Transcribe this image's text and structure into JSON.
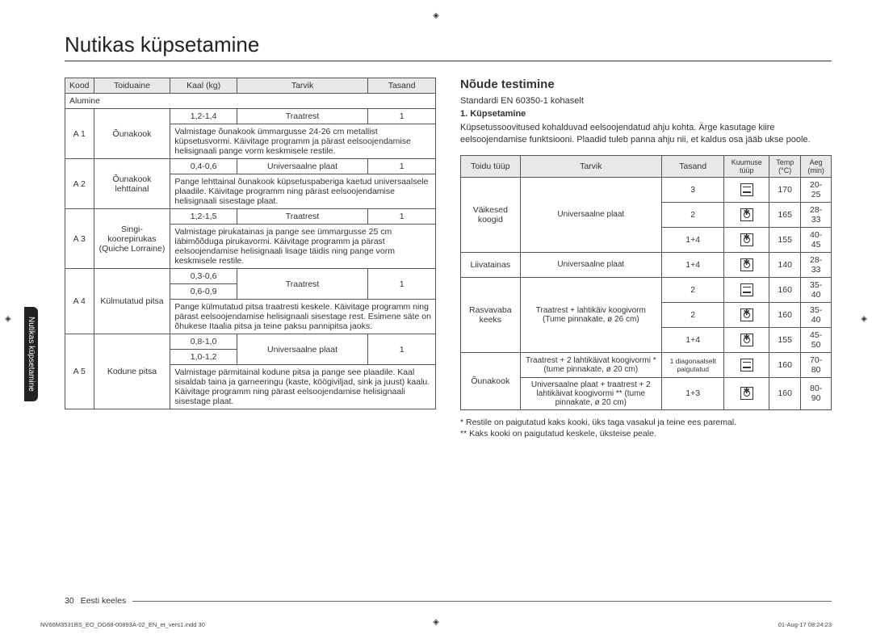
{
  "crop_marks": "◈",
  "page_title": "Nutikas küpsetamine",
  "side_tab": "Nutikas küpsetamine",
  "left_table": {
    "headers": [
      "Kood",
      "Toiduaine",
      "Kaal (kg)",
      "Tarvik",
      "Tasand"
    ],
    "subheader": "Alumine",
    "rows": [
      {
        "code": "A 1",
        "food": "Õunakook",
        "w": "1,2-1,4",
        "acc": "Traatrest",
        "lvl": "1",
        "note": "Valmistage õunakook ümmargusse 24-26 cm metallist küpsetusvormi. Käivitage programm ja pärast eelsoojendamise helisignaali pange vorm keskmisele restile."
      },
      {
        "code": "A 2",
        "food": "Õunakook lehttainal",
        "w": "0,4-0,6",
        "acc": "Universaalne plaat",
        "lvl": "1",
        "note": "Pange lehttainal õunakook küpsetuspaberiga kaetud universaalsele plaadile. Käivitage programm ning pärast eelsoojendamise helisignaali sisestage plaat."
      },
      {
        "code": "A 3",
        "food": "Singi-koorepirukas (Quiche Lorraine)",
        "w": "1,2-1,5",
        "acc": "Traatrest",
        "lvl": "1",
        "note": "Valmistage pirukatainas ja pange see ümmargusse 25 cm läbimõõduga pirukavormi. Käivitage programm ja pärast eelsoojendamise helisignaali lisage täidis ning pange vorm keskmisele restile."
      },
      {
        "code": "A 4",
        "food": "Külmutatud pitsa",
        "w1": "0,3-0,6",
        "w2": "0,6-0,9",
        "acc": "Traatrest",
        "lvl": "1",
        "note": "Pange külmutatud pitsa traatresti keskele. Käivitage programm ning pärast eelsoojendamise helisignaali sisestage rest. Esimene säte on õhukese Itaalia pitsa ja teine paksu pannipitsa jaoks."
      },
      {
        "code": "A 5",
        "food": "Kodune pitsa",
        "w1": "0,8-1,0",
        "w2": "1,0-1,2",
        "acc": "Universaalne plaat",
        "lvl": "1",
        "note": "Valmistage pärmitainal kodune pitsa ja pange see plaadile. Kaal sisaldab taina ja garneeringu (kaste, köögiviljad, sink ja juust) kaalu. Käivitage programm ning pärast eelsoojendamise helisignaali sisestage plaat."
      }
    ]
  },
  "right": {
    "heading": "Nõude testimine",
    "line1": "Standardi EN 60350-1 kohaselt",
    "line2": "1. Küpsetamine",
    "para": "Küpsetussoovitused kohalduvad eelsoojendatud ahju kohta. Ärge kasutage kiire eelsoojendamise funktsiooni. Plaadid tuleb panna ahju nii, et kaldus osa jääb ukse poole.",
    "headers": [
      "Toidu tüüp",
      "Tarvik",
      "Tasand",
      "Kuumuse tüüp",
      "Temp (°C)",
      "Aeg (min)"
    ],
    "rows": [
      {
        "food": "Väikesed koogid",
        "acc": "Universaalne plaat",
        "lvl": "3",
        "heat": "bars",
        "temp": "170",
        "time": "20-25",
        "fspan": 3,
        "aspan": 3
      },
      {
        "lvl": "2",
        "heat": "fan",
        "temp": "165",
        "time": "28-33"
      },
      {
        "lvl": "1+4",
        "heat": "fan",
        "temp": "155",
        "time": "40-45"
      },
      {
        "food": "Liivatainas",
        "acc": "Universaalne plaat",
        "lvl": "1+4",
        "heat": "fan",
        "temp": "140",
        "time": "28-33"
      },
      {
        "food": "Rasvavaba keeks",
        "acc": "Traatrest + lahtikäiv koogivorm (Tume pinnakate, ø 26 cm)",
        "lvl": "2",
        "heat": "bars",
        "temp": "160",
        "time": "35-40",
        "fspan": 3,
        "aspan": 3
      },
      {
        "lvl": "2",
        "heat": "fan",
        "temp": "160",
        "time": "35-40"
      },
      {
        "lvl": "1+4",
        "heat": "fan",
        "temp": "155",
        "time": "45-50"
      },
      {
        "food": "Õunakook",
        "acc": "Traatrest + 2 lahtikäivat koogivormi * (tume pinnakate, ø 20 cm)",
        "lvl": "1 diagonaalselt paigutatud",
        "heat": "bars",
        "temp": "160",
        "time": "70-80",
        "fspan": 2,
        "lvlsmall": true
      },
      {
        "acc": "Universaalne plaat + traatrest + 2 lahtikäivat koogivormi ** (tume pinnakate, ø 20 cm)",
        "lvl": "1+3",
        "heat": "fan",
        "temp": "160",
        "time": "80-90"
      }
    ],
    "note1": "* Restile on paigutatud kaks kooki, üks taga vasakul ja teine ees paremal.",
    "note2": "** Kaks kooki on paigutatud keskele, üksteise peale."
  },
  "footer_page": "30",
  "footer_lang": "Eesti keeles",
  "fine_left": "NV66M3531BS_EO_DG68-00893A-02_EN_et_vers1.indd   30",
  "fine_right": "01-Aug-17   08:24:23"
}
